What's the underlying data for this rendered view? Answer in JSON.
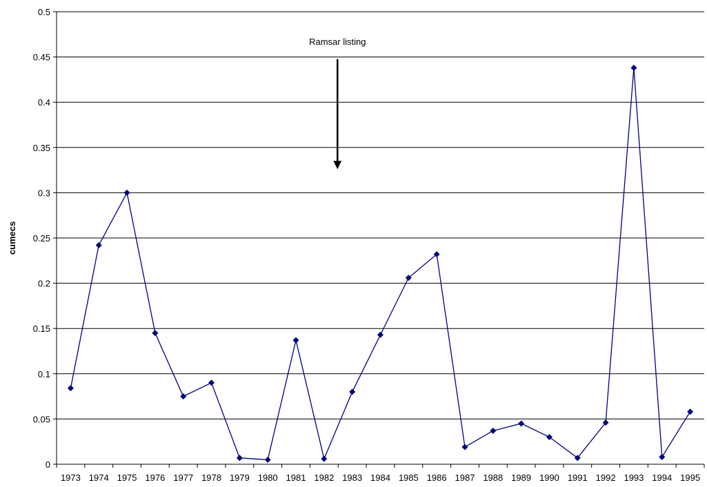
{
  "chart_data": {
    "type": "line",
    "title": "",
    "xlabel": "",
    "ylabel": "cumecs",
    "ylim": [
      0,
      0.5
    ],
    "y_ticks": [
      "0",
      "0.05",
      "0.1",
      "0.15",
      "0.2",
      "0.25",
      "0.3",
      "0.35",
      "0.4",
      "0.45",
      "0.5"
    ],
    "categories": [
      "1973",
      "1974",
      "1975",
      "1976",
      "1977",
      "1978",
      "1979",
      "1980",
      "1981",
      "1982",
      "1983",
      "1984",
      "1985",
      "1986",
      "1987",
      "1988",
      "1989",
      "1990",
      "1991",
      "1992",
      "1993",
      "1994",
      "1995"
    ],
    "series": [
      {
        "values": [
          0.084,
          0.242,
          0.3,
          0.145,
          0.075,
          0.09,
          0.007,
          0.005,
          0.137,
          0.006,
          0.08,
          0.143,
          0.206,
          0.232,
          0.019,
          0.037,
          0.045,
          0.03,
          0.007,
          0.046,
          0.438,
          0.008,
          0.058
        ],
        "color": "#000080",
        "marker": "diamond"
      }
    ],
    "grid": true,
    "legend": "none",
    "annotations": [
      {
        "text": "Ramsar listing",
        "arrow": "down",
        "x_category": "1982"
      }
    ]
  }
}
